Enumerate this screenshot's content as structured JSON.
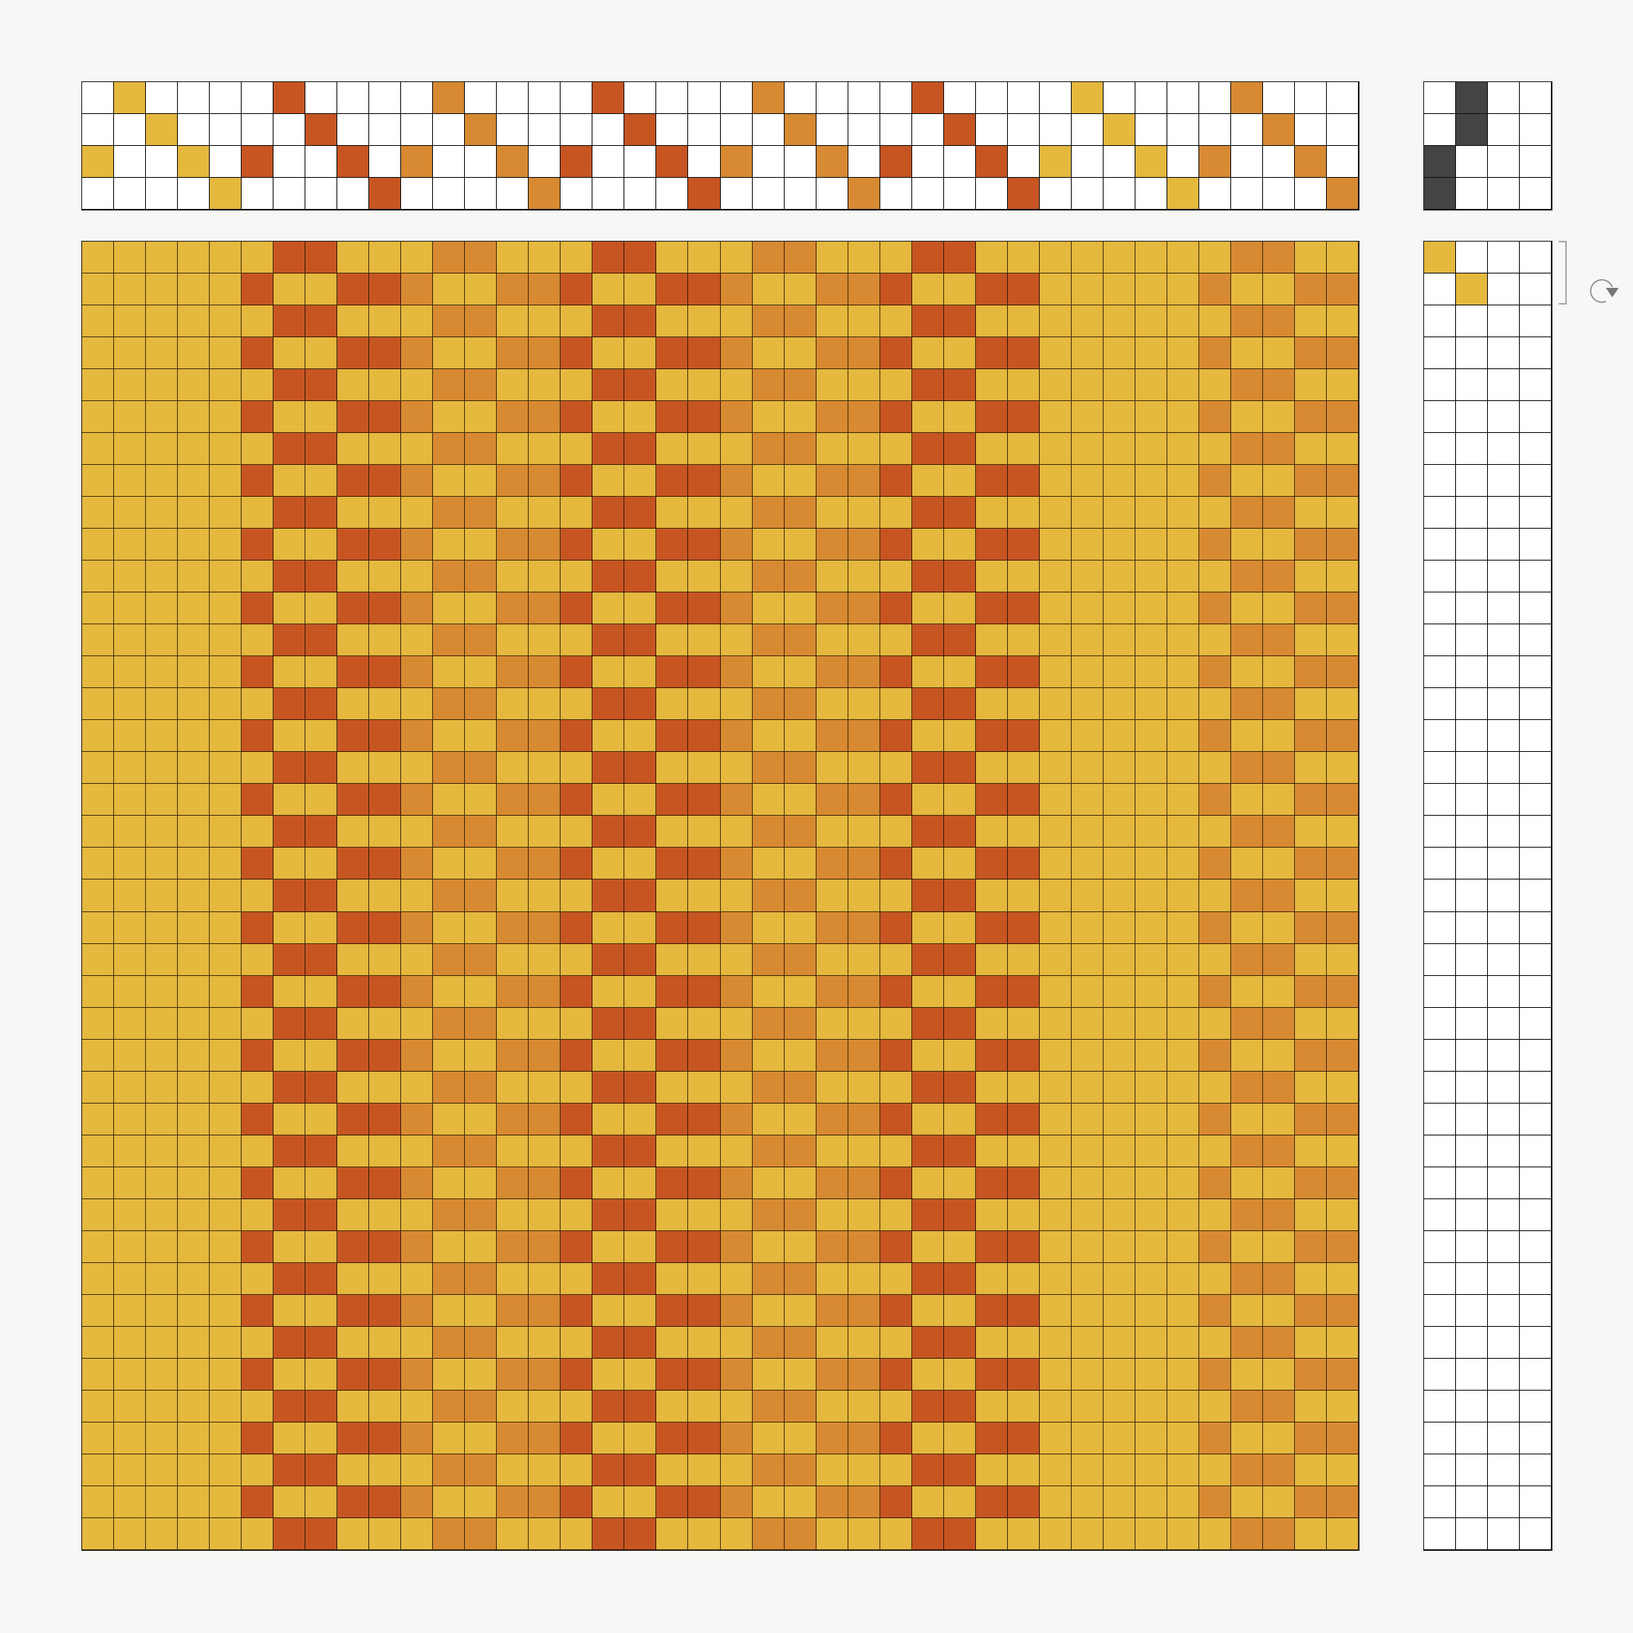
{
  "colors": {
    "yellow": "#E5B83E",
    "red": "#C75522",
    "orange": "#D88A32",
    "tie": "#444444",
    "empty": "#ffffff"
  },
  "threading": {
    "shafts": [
      3,
      1,
      2,
      3,
      4,
      3,
      1,
      2,
      3,
      4,
      3,
      1,
      2,
      3,
      4,
      3,
      1,
      2,
      3,
      4,
      3,
      1,
      2,
      3,
      4,
      3,
      1,
      2,
      3,
      4,
      3,
      1,
      2,
      3,
      4,
      3,
      1,
      2,
      3,
      4
    ],
    "warp_colors": [
      "yellow",
      "yellow",
      "yellow",
      "yellow",
      "yellow",
      "red",
      "red",
      "red",
      "red",
      "red",
      "orange",
      "orange",
      "orange",
      "orange",
      "orange",
      "red",
      "red",
      "red",
      "red",
      "red",
      "orange",
      "orange",
      "orange",
      "orange",
      "orange",
      "red",
      "red",
      "red",
      "red",
      "red",
      "yellow",
      "yellow",
      "yellow",
      "yellow",
      "yellow",
      "orange",
      "orange",
      "orange",
      "orange",
      "orange"
    ]
  },
  "tieup": {
    "treadles": [
      [
        3,
        4
      ],
      [
        1,
        2
      ]
    ]
  },
  "treadling": {
    "picks": [
      1,
      2
    ],
    "weft_colors": [
      "yellow",
      "yellow"
    ]
  },
  "drawdown": {
    "weft_color": "yellow"
  },
  "icons": {
    "repeat": "rotate-repeat-icon"
  }
}
